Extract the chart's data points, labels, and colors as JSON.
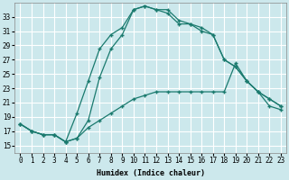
{
  "xlabel": "Humidex (Indice chaleur)",
  "bg_color": "#cce8ec",
  "line_color": "#1a7a6e",
  "grid_color": "#ffffff",
  "xlim": [
    -0.5,
    23.5
  ],
  "ylim": [
    14.0,
    35.0
  ],
  "xticks": [
    0,
    1,
    2,
    3,
    4,
    5,
    6,
    7,
    8,
    9,
    10,
    11,
    12,
    13,
    14,
    15,
    16,
    17,
    18,
    19,
    20,
    21,
    22,
    23
  ],
  "yticks": [
    15,
    17,
    19,
    21,
    23,
    25,
    27,
    29,
    31,
    33
  ],
  "line1_x": [
    0,
    1,
    2,
    3,
    4,
    5,
    6,
    7,
    8,
    9,
    10,
    11,
    12,
    13,
    14,
    15,
    16,
    17,
    18,
    19,
    20,
    21,
    22,
    23
  ],
  "line1_y": [
    18.0,
    17.0,
    16.5,
    16.5,
    15.5,
    16.0,
    17.5,
    18.5,
    19.5,
    20.5,
    21.5,
    22.0,
    22.5,
    22.5,
    22.5,
    22.5,
    22.5,
    22.5,
    22.5,
    26.5,
    24.0,
    22.5,
    20.5,
    20.0
  ],
  "line2_x": [
    0,
    1,
    2,
    3,
    4,
    5,
    6,
    7,
    8,
    9,
    10,
    11,
    12,
    13,
    14,
    15,
    16,
    17,
    18,
    19,
    20,
    21,
    22,
    23
  ],
  "line2_y": [
    18.0,
    17.0,
    16.5,
    16.5,
    15.5,
    19.5,
    24.0,
    28.5,
    30.5,
    31.5,
    34.0,
    34.5,
    34.0,
    34.0,
    32.5,
    32.0,
    31.0,
    30.5,
    27.0,
    26.0,
    24.0,
    22.5,
    21.5,
    20.5
  ],
  "line3_x": [
    0,
    1,
    2,
    3,
    4,
    5,
    6,
    7,
    8,
    9,
    10,
    11,
    12,
    13,
    14,
    15,
    16,
    17,
    18,
    19,
    20,
    21,
    22,
    23
  ],
  "line3_y": [
    18.0,
    17.0,
    16.5,
    16.5,
    15.5,
    16.0,
    18.5,
    24.5,
    28.5,
    30.5,
    34.0,
    34.5,
    34.0,
    33.5,
    32.0,
    32.0,
    31.5,
    30.5,
    27.0,
    26.0,
    24.0,
    22.5,
    21.5,
    20.5
  ]
}
